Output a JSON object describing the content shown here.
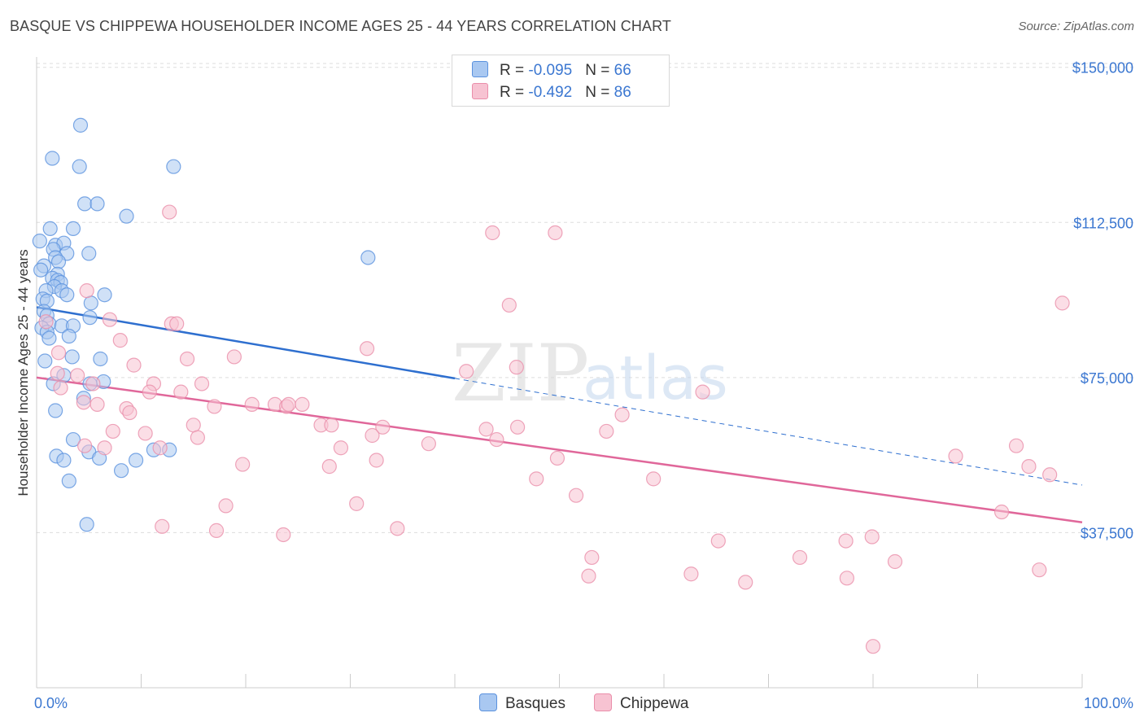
{
  "header": {
    "title": "BASQUE VS CHIPPEWA HOUSEHOLDER INCOME AGES 25 - 44 YEARS CORRELATION CHART",
    "source": "Source: ZipAtlas.com"
  },
  "watermark": {
    "zip": "ZIP",
    "atlas": "atlas"
  },
  "legend": {
    "rows": [
      {
        "r_label": "R = ",
        "r_value": "-0.095",
        "n_label": "N = ",
        "n_value": "66",
        "color": "#7aaae8"
      },
      {
        "r_label": "R = ",
        "r_value": "-0.492",
        "n_label": "N = ",
        "n_value": "86",
        "color": "#f0a0b8"
      }
    ]
  },
  "bottom_legend": {
    "basques": "Basques",
    "chippewa": "Chippewa"
  },
  "colors": {
    "basques_fill": "#a9c8f1",
    "basques_stroke": "#5b92de",
    "basques_line": "#2e6fcf",
    "chippewa_fill": "#f7c3d2",
    "chippewa_stroke": "#ea8eaa",
    "chippewa_line": "#e0679a",
    "axis_text": "#3b77d1",
    "grid": "#dddddd"
  },
  "chart_data": {
    "type": "scatter",
    "title": "BASQUE VS CHIPPEWA HOUSEHOLDER INCOME AGES 25 - 44 YEARS CORRELATION CHART",
    "xlabel": "",
    "ylabel": "Householder Income Ages 25 - 44 years",
    "xlim": [
      0,
      100
    ],
    "ylim": [
      0,
      152500
    ],
    "x_tick_labels": [
      "0.0%",
      "100.0%"
    ],
    "y_ticks": [
      37500,
      75000,
      112500,
      150000
    ],
    "y_tick_labels": [
      "$37,500",
      "$75,000",
      "$112,500",
      "$150,000"
    ],
    "grid": true,
    "series": [
      {
        "name": "Basques",
        "r": -0.095,
        "n": 66,
        "trend": {
          "x0": 0,
          "y0": 92000,
          "x1": 100,
          "y1": 49000,
          "solid_until_x": 40
        },
        "points": [
          [
            4.2,
            136000
          ],
          [
            1.5,
            128000
          ],
          [
            4.1,
            126000
          ],
          [
            13.1,
            126000
          ],
          [
            4.6,
            117000
          ],
          [
            5.8,
            117000
          ],
          [
            8.6,
            114000
          ],
          [
            1.3,
            111000
          ],
          [
            3.5,
            111000
          ],
          [
            0.3,
            108000
          ],
          [
            1.8,
            107000
          ],
          [
            2.6,
            107500
          ],
          [
            1.6,
            106000
          ],
          [
            2.9,
            105000
          ],
          [
            5.0,
            105000
          ],
          [
            1.8,
            104000
          ],
          [
            2.1,
            103000
          ],
          [
            0.7,
            102000
          ],
          [
            0.4,
            101000
          ],
          [
            2.0,
            100000
          ],
          [
            1.5,
            99000
          ],
          [
            2.0,
            98500
          ],
          [
            2.3,
            98000
          ],
          [
            1.7,
            97000
          ],
          [
            0.9,
            96000
          ],
          [
            2.4,
            96000
          ],
          [
            2.9,
            95000
          ],
          [
            6.5,
            95000
          ],
          [
            0.6,
            94000
          ],
          [
            1.0,
            93500
          ],
          [
            5.2,
            93000
          ],
          [
            0.7,
            91000
          ],
          [
            1.0,
            90000
          ],
          [
            5.1,
            89500
          ],
          [
            1.2,
            88000
          ],
          [
            0.5,
            87000
          ],
          [
            2.4,
            87500
          ],
          [
            3.5,
            87500
          ],
          [
            1.0,
            86000
          ],
          [
            3.1,
            85000
          ],
          [
            1.2,
            84500
          ],
          [
            0.8,
            79000
          ],
          [
            3.4,
            80000
          ],
          [
            6.1,
            79500
          ],
          [
            2.6,
            75500
          ],
          [
            6.4,
            74000
          ],
          [
            1.6,
            73500
          ],
          [
            5.1,
            73500
          ],
          [
            4.5,
            70000
          ],
          [
            1.8,
            67000
          ],
          [
            3.5,
            60000
          ],
          [
            1.9,
            56000
          ],
          [
            5.0,
            57000
          ],
          [
            11.2,
            57500
          ],
          [
            12.7,
            57500
          ],
          [
            2.6,
            55000
          ],
          [
            6.0,
            55500
          ],
          [
            9.5,
            55000
          ],
          [
            8.1,
            52500
          ],
          [
            3.1,
            50000
          ],
          [
            31.7,
            104000
          ],
          [
            4.8,
            39500
          ]
        ]
      },
      {
        "name": "Chippewa",
        "r": -0.492,
        "n": 86,
        "trend": {
          "x0": 0,
          "y0": 75000,
          "x1": 100,
          "y1": 40000
        },
        "points": [
          [
            12.7,
            115000
          ],
          [
            43.6,
            110000
          ],
          [
            49.6,
            110000
          ],
          [
            45.2,
            92500
          ],
          [
            98.1,
            93000
          ],
          [
            4.8,
            96000
          ],
          [
            7.0,
            89000
          ],
          [
            12.9,
            88000
          ],
          [
            13.4,
            88000
          ],
          [
            0.9,
            88500
          ],
          [
            8.0,
            84000
          ],
          [
            31.6,
            82000
          ],
          [
            2.1,
            81000
          ],
          [
            14.4,
            79500
          ],
          [
            18.9,
            80000
          ],
          [
            9.3,
            78000
          ],
          [
            45.9,
            77500
          ],
          [
            41.1,
            76500
          ],
          [
            2.0,
            76000
          ],
          [
            3.9,
            75500
          ],
          [
            11.2,
            73500
          ],
          [
            5.4,
            73500
          ],
          [
            15.8,
            73500
          ],
          [
            2.3,
            72500
          ],
          [
            10.8,
            71500
          ],
          [
            13.8,
            71500
          ],
          [
            63.7,
            71500
          ],
          [
            4.5,
            69000
          ],
          [
            5.8,
            68500
          ],
          [
            17.0,
            68000
          ],
          [
            20.6,
            68500
          ],
          [
            22.8,
            68500
          ],
          [
            23.9,
            68000
          ],
          [
            24.1,
            68500
          ],
          [
            25.4,
            68500
          ],
          [
            8.6,
            67500
          ],
          [
            8.9,
            66500
          ],
          [
            56.0,
            66000
          ],
          [
            15.0,
            63500
          ],
          [
            27.2,
            63500
          ],
          [
            28.2,
            63500
          ],
          [
            33.1,
            63000
          ],
          [
            46.0,
            63000
          ],
          [
            43.0,
            62500
          ],
          [
            7.3,
            62000
          ],
          [
            10.4,
            61500
          ],
          [
            32.1,
            61000
          ],
          [
            54.5,
            62000
          ],
          [
            15.4,
            60500
          ],
          [
            44.0,
            60000
          ],
          [
            37.5,
            59000
          ],
          [
            4.6,
            58500
          ],
          [
            6.5,
            58000
          ],
          [
            11.8,
            58000
          ],
          [
            29.1,
            58000
          ],
          [
            87.9,
            56000
          ],
          [
            93.7,
            58500
          ],
          [
            32.5,
            55000
          ],
          [
            49.8,
            55500
          ],
          [
            19.7,
            54000
          ],
          [
            28.0,
            53500
          ],
          [
            94.9,
            53500
          ],
          [
            96.9,
            51500
          ],
          [
            47.8,
            50500
          ],
          [
            59.0,
            50500
          ],
          [
            51.6,
            46500
          ],
          [
            18.1,
            44000
          ],
          [
            30.6,
            44500
          ],
          [
            92.3,
            42500
          ],
          [
            12.0,
            39000
          ],
          [
            17.2,
            38000
          ],
          [
            23.6,
            37000
          ],
          [
            34.5,
            38500
          ],
          [
            65.2,
            35500
          ],
          [
            77.4,
            35500
          ],
          [
            79.9,
            36500
          ],
          [
            53.1,
            31500
          ],
          [
            73.0,
            31500
          ],
          [
            82.1,
            30500
          ],
          [
            52.8,
            27000
          ],
          [
            62.6,
            27500
          ],
          [
            67.8,
            25500
          ],
          [
            77.5,
            26500
          ],
          [
            95.9,
            28500
          ],
          [
            80.0,
            10000
          ]
        ]
      }
    ]
  }
}
